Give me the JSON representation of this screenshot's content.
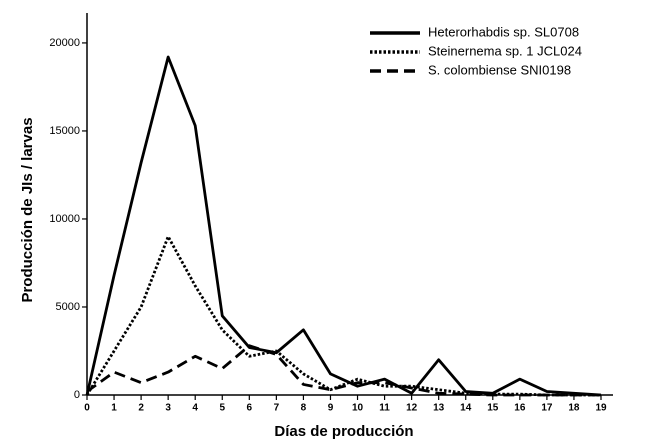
{
  "chart_data": {
    "type": "line",
    "x_label": "Días de producción",
    "y_label": "Producción de JIs / larvas",
    "x": [
      0,
      1,
      2,
      3,
      4,
      5,
      6,
      7,
      8,
      9,
      10,
      11,
      12,
      13,
      14,
      15,
      16,
      17,
      18,
      19
    ],
    "xlim": [
      0,
      19
    ],
    "xticks": [
      0,
      1,
      2,
      3,
      4,
      5,
      6,
      7,
      8,
      9,
      10,
      11,
      12,
      13,
      14,
      15,
      16,
      17,
      18,
      19
    ],
    "ylim": [
      0,
      21700
    ],
    "yticks": [
      0,
      5000,
      10000,
      15000,
      20000
    ],
    "legend": "upper-right",
    "series": [
      {
        "name": "Heterorhabdis sp. SL0708",
        "color": "#000000",
        "dash": "solid",
        "values": [
          0,
          6800,
          13200,
          19200,
          15300,
          4500,
          2700,
          2400,
          3700,
          1200,
          500,
          900,
          100,
          2000,
          200,
          100,
          900,
          200,
          100,
          0
        ]
      },
      {
        "name": "Steinernema sp. 1 JCL024",
        "color": "#000000",
        "dash": "dotted",
        "values": [
          0,
          2500,
          5000,
          9000,
          6200,
          3700,
          2200,
          2500,
          1200,
          300,
          900,
          500,
          500,
          300,
          100,
          50,
          50,
          0,
          0,
          0
        ]
      },
      {
        "name": "S. colombiense SNI0198",
        "color": "#000000",
        "dash": "dashed",
        "values": [
          200,
          1300,
          700,
          1300,
          2200,
          1500,
          2800,
          2300,
          600,
          300,
          700,
          700,
          400,
          100,
          50,
          0,
          0,
          0,
          0,
          0
        ]
      }
    ]
  }
}
